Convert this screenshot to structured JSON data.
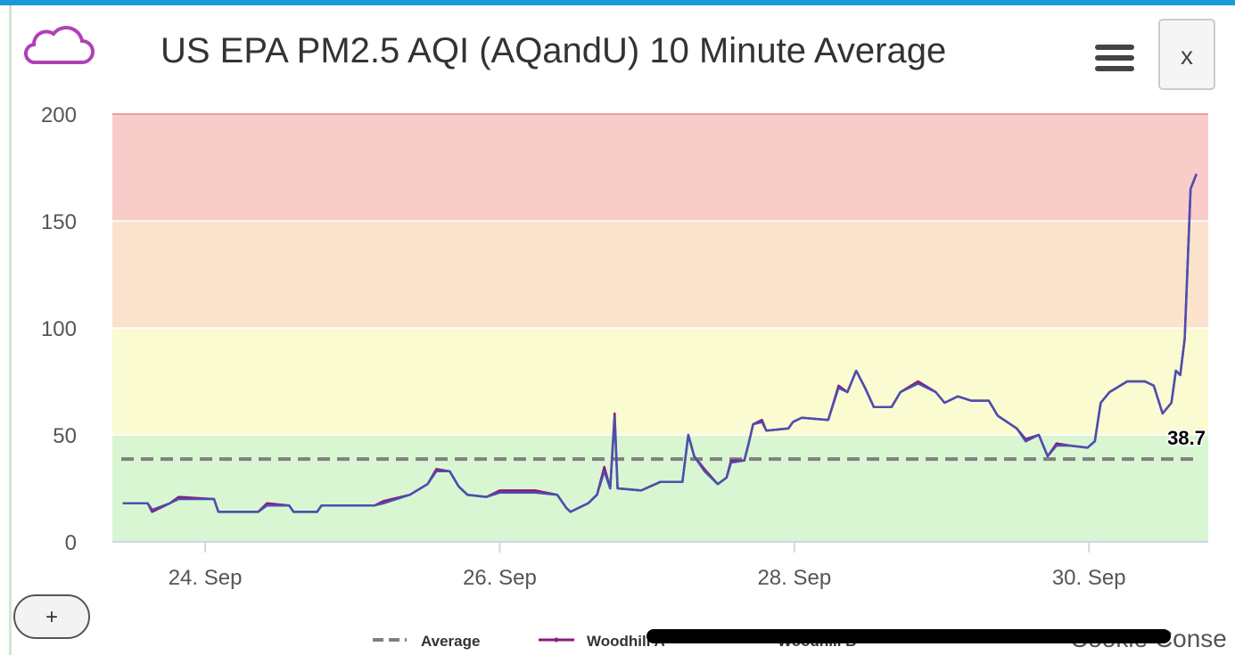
{
  "chart_data": {
    "type": "line",
    "title": "US EPA PM2.5 AQI (AQandU) 10 Minute Average",
    "close_button": "x",
    "zoom_button": "+",
    "cookie_notice": "Cookie Conse",
    "x": [
      23.44,
      23.61,
      23.64,
      23.76,
      23.82,
      24.06,
      24.09,
      24.36,
      24.42,
      24.57,
      24.6,
      24.76,
      24.79,
      25.15,
      25.21,
      25.39,
      25.51,
      25.57,
      25.66,
      25.72,
      25.78,
      25.91,
      26.0,
      26.24,
      26.39,
      26.45,
      26.48,
      26.6,
      26.66,
      26.71,
      26.75,
      26.78,
      26.8,
      26.96,
      27.09,
      27.24,
      27.28,
      27.32,
      27.39,
      27.48,
      27.54,
      27.57,
      27.66,
      27.69,
      27.72,
      27.78,
      27.81,
      27.96,
      27.99,
      28.05,
      28.23,
      28.3,
      28.36,
      28.42,
      28.48,
      28.54,
      28.66,
      28.72,
      28.84,
      28.96,
      29.02,
      29.11,
      29.2,
      29.32,
      29.38,
      29.51,
      29.57,
      29.66,
      29.72,
      29.78,
      29.87,
      29.99,
      30.04,
      30.08,
      30.14,
      30.26,
      30.38,
      30.44,
      30.5,
      30.56,
      30.59,
      30.62,
      30.65,
      30.69,
      30.73
    ],
    "series": [
      {
        "name": "Woodhill A",
        "color": "#8b1a7a",
        "values": [
          18,
          18,
          14,
          18,
          21,
          20,
          14,
          14,
          18,
          17,
          14,
          14,
          17,
          17,
          19,
          22,
          27,
          34,
          33,
          26,
          22,
          21,
          24,
          24,
          22,
          16,
          14,
          18,
          22,
          35,
          25,
          60,
          25,
          24,
          28,
          28,
          50,
          40,
          34,
          27,
          30,
          38,
          38,
          46,
          55,
          57,
          52,
          53,
          56,
          58,
          57,
          73,
          70,
          80,
          72,
          63,
          63,
          70,
          75,
          70,
          65,
          68,
          66,
          66,
          59,
          53,
          48,
          50,
          40,
          46,
          45,
          44,
          47,
          65,
          70,
          75,
          75,
          73,
          60,
          65,
          80,
          78,
          95,
          165,
          172
        ]
      },
      {
        "name": "Woodhill B",
        "color": "#4b4fb0",
        "values": [
          18,
          18,
          15,
          18,
          20,
          20,
          14,
          14,
          17,
          17,
          14,
          14,
          17,
          17,
          18,
          22,
          27,
          33,
          33,
          26,
          22,
          21,
          23,
          23,
          22,
          16,
          14,
          18,
          22,
          33,
          25,
          58,
          25,
          24,
          28,
          28,
          50,
          40,
          33,
          27,
          30,
          37,
          38,
          46,
          55,
          56,
          52,
          53,
          56,
          58,
          57,
          72,
          70,
          80,
          72,
          63,
          63,
          70,
          74,
          70,
          65,
          68,
          66,
          66,
          59,
          53,
          47,
          50,
          40,
          45,
          45,
          44,
          47,
          65,
          70,
          75,
          75,
          73,
          60,
          65,
          80,
          78,
          95,
          165,
          172
        ]
      }
    ],
    "average": {
      "name": "Average",
      "value": 38.7,
      "color": "#808080"
    },
    "bands": [
      {
        "from": 0,
        "to": 50,
        "color": "#d9f6d2"
      },
      {
        "from": 50,
        "to": 100,
        "color": "#fbfbd2"
      },
      {
        "from": 100,
        "to": 150,
        "color": "#fbe2cc"
      },
      {
        "from": 150,
        "to": 200,
        "color": "#f8cdc9"
      }
    ],
    "xlim": [
      23.37,
      30.81
    ],
    "xticks": [
      {
        "value": 24,
        "label": "24. Sep"
      },
      {
        "value": 26,
        "label": "26. Sep"
      },
      {
        "value": 28,
        "label": "28. Sep"
      },
      {
        "value": 30,
        "label": "30. Sep"
      }
    ],
    "ylim": [
      0,
      200
    ],
    "yticks": [
      0,
      50,
      100,
      150,
      200
    ],
    "grid": true
  }
}
